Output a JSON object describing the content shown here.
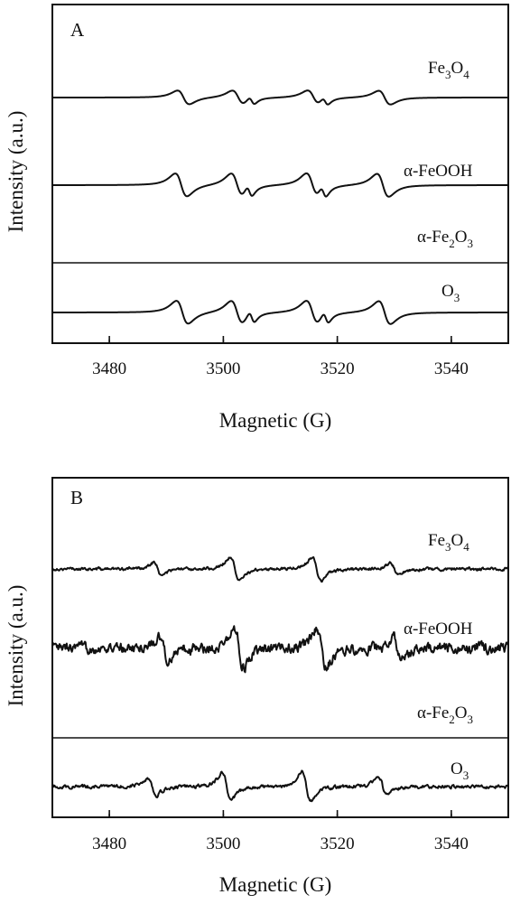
{
  "figure": {
    "panels": [
      {
        "label": "A",
        "xlabel": "Magnetic (G)",
        "ylabel": "Intensity (a.u.)"
      },
      {
        "label": "B",
        "xlabel": "Magnetic (G)",
        "ylabel": "Intensity (a.u.)"
      }
    ]
  },
  "chart_data": [
    {
      "panel": "A",
      "type": "line",
      "title": "",
      "xlabel": "Magnetic (G)",
      "ylabel": "Intensity (a.u.)",
      "xlim": [
        3470,
        3550
      ],
      "xticks": [
        3480,
        3500,
        3520,
        3540
      ],
      "y_axis_ticks_labeled": false,
      "grid": false,
      "legend": "none; series labeled inline at right",
      "series": [
        {
          "name": "Fe3O4",
          "label_base": "Fe",
          "label_sub1": "3",
          "label_mid": "O",
          "label_sub2": "4",
          "offset": 3,
          "amplitude": 0.58,
          "noise": 0,
          "lines": [
            {
              "center": 3493.0,
              "amp": 1.0,
              "width": 1.8
            },
            {
              "center": 3502.6,
              "amp": 1.0,
              "width": 1.8
            },
            {
              "center": 3505.0,
              "amp": 0.55,
              "width": 0.9
            },
            {
              "center": 3515.8,
              "amp": 1.0,
              "width": 1.8
            },
            {
              "center": 3517.9,
              "amp": 0.55,
              "width": 0.9
            },
            {
              "center": 3528.3,
              "amp": 1.0,
              "width": 1.8
            }
          ]
        },
        {
          "name": "α-FeOOH",
          "label_base": "α-FeOOH",
          "offset": 2,
          "amplitude": 1.0,
          "noise": 0,
          "lines": [
            {
              "center": 3492.6,
              "amp": 1.0,
              "width": 1.8
            },
            {
              "center": 3502.4,
              "amp": 1.0,
              "width": 1.8
            },
            {
              "center": 3504.6,
              "amp": 0.5,
              "width": 0.9
            },
            {
              "center": 3515.6,
              "amp": 1.0,
              "width": 1.8
            },
            {
              "center": 3517.6,
              "amp": 0.5,
              "width": 0.9
            },
            {
              "center": 3528.0,
              "amp": 1.0,
              "width": 1.8
            }
          ]
        },
        {
          "name": "α-Fe2O3",
          "label_base": "α-Fe",
          "label_sub1": "2",
          "label_mid": "O",
          "label_sub2": "3",
          "note": "label only; trace shares the α-FeOOH signal region"
        },
        {
          "name": "O3",
          "label_base": "O",
          "label_sub1": "3",
          "offset": 0,
          "amplitude": 0.22,
          "noise": 0,
          "lines": [
            {
              "center": 3492.8,
              "amp": 1.0,
              "width": 1.8
            },
            {
              "center": 3502.4,
              "amp": 1.0,
              "width": 1.8
            },
            {
              "center": 3505.0,
              "amp": 0.5,
              "width": 0.9
            },
            {
              "center": 3515.6,
              "amp": 1.0,
              "width": 1.8
            },
            {
              "center": 3518.0,
              "amp": 0.5,
              "width": 0.9
            },
            {
              "center": 3528.3,
              "amp": 1.0,
              "width": 1.8
            }
          ]
        }
      ]
    },
    {
      "panel": "B",
      "type": "line",
      "title": "",
      "xlabel": "Magnetic (G)",
      "ylabel": "Intensity (a.u.)",
      "xlim": [
        3470,
        3550
      ],
      "xticks": [
        3480,
        3500,
        3520,
        3540
      ],
      "y_axis_ticks_labeled": false,
      "grid": false,
      "legend": "none; series labeled inline at right",
      "series": [
        {
          "name": "Fe3O4",
          "label_base": "Fe",
          "label_sub1": "3",
          "label_mid": "O",
          "label_sub2": "4",
          "offset": 3,
          "amplitude": 0.5,
          "noise": 0.04,
          "lines": [
            {
              "center": 3488.5,
              "amp": 0.55,
              "width": 1.2
            },
            {
              "center": 3502.0,
              "amp": 1.0,
              "width": 1.3
            },
            {
              "center": 3516.4,
              "amp": 1.0,
              "width": 1.3
            },
            {
              "center": 3530.0,
              "amp": 0.5,
              "width": 1.2
            }
          ]
        },
        {
          "name": "α-FeOOH",
          "label_base": "α-FeOOH",
          "offset": 2,
          "amplitude": 1.0,
          "noise": 0.09,
          "lines": [
            {
              "center": 3489.6,
              "amp": 0.6,
              "width": 1.3
            },
            {
              "center": 3502.8,
              "amp": 1.0,
              "width": 1.4
            },
            {
              "center": 3517.2,
              "amp": 1.0,
              "width": 1.4
            },
            {
              "center": 3530.6,
              "amp": 0.55,
              "width": 1.2
            }
          ]
        },
        {
          "name": "α-Fe2O3",
          "label_base": "α-Fe",
          "label_sub1": "2",
          "label_mid": "O",
          "label_sub2": "3",
          "note": "label only; trace shares the α-FeOOH signal region"
        },
        {
          "name": "O3",
          "label_base": "O",
          "label_sub1": "3",
          "offset": 0,
          "amplitude": 0.2,
          "noise": 0.04,
          "lines": [
            {
              "center": 3487.5,
              "amp": 0.6,
              "width": 1.3
            },
            {
              "center": 3500.6,
              "amp": 1.0,
              "width": 1.3
            },
            {
              "center": 3514.6,
              "amp": 1.0,
              "width": 1.3
            },
            {
              "center": 3528.0,
              "amp": 0.6,
              "width": 1.3
            }
          ]
        }
      ]
    }
  ]
}
